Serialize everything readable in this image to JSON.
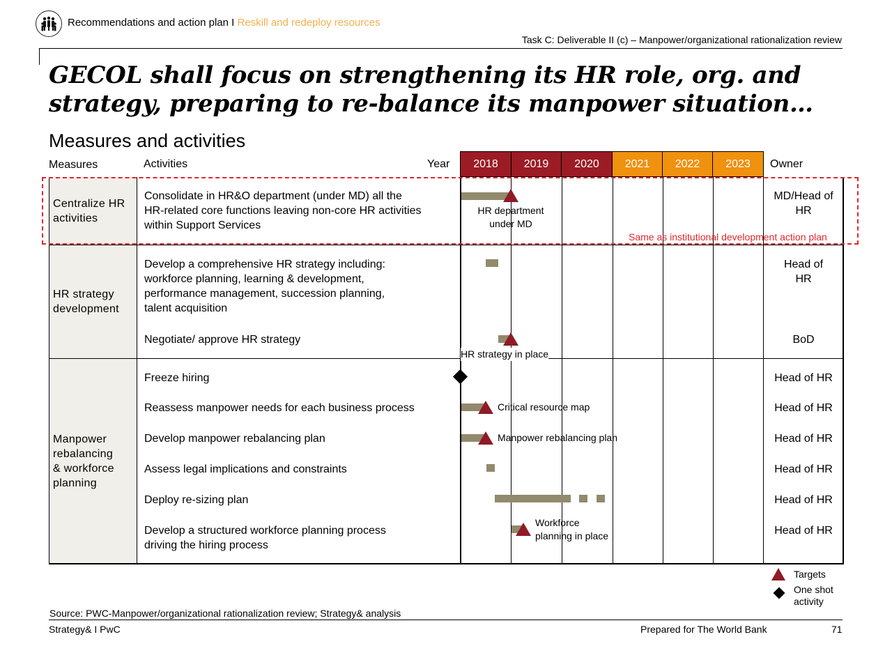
{
  "header": {
    "breadcrumb": "Recommendations and action plan I",
    "breadcrumb_accent": "Reskill and redeploy resources",
    "task": "Task C: Deliverable II (c) – Manpower/organizational rationalization review"
  },
  "title": "GECOL shall focus on strengthening its HR role, org. and strategy, preparing to re-balance its manpower situation…",
  "subtitle": "Measures and activities",
  "table": {
    "col_measures": "Measures",
    "col_activities": "Activities",
    "col_year": "Year",
    "col_owner": "Owner",
    "years": [
      "2018",
      "2019",
      "2020",
      "2021",
      "2022",
      "2023"
    ],
    "year_colors": [
      "#9b1c25",
      "#9b1c25",
      "#9b1c25",
      "#f0910f",
      "#f0910f",
      "#f0910f"
    ],
    "measures": [
      "Centralize HR\nactivities",
      "HR strategy\ndevelopment",
      "Manpower\nrebalancing\n& workforce\nplanning"
    ],
    "activities": [
      "Consolidate in HR&O department (under MD) all the\nHR-related core functions leaving non-core HR activities\nwithin Support Services",
      "Develop a comprehensive HR strategy including:\nworkforce planning, learning & development,\nperformance management, succession planning,\ntalent acquisition",
      "Negotiate/ approve HR strategy",
      "Freeze hiring",
      "Reassess manpower needs for each business process",
      "Develop manpower rebalancing plan",
      "Assess legal implications and constraints",
      "Deploy re-sizing plan",
      "Develop a structured workforce planning process\ndriving the hiring process"
    ],
    "owners": [
      "MD/Head of\nHR",
      "Head of\nHR",
      "BoD",
      "Head of HR",
      "Head of HR",
      "Head of HR",
      "Head of HR",
      "Head of HR",
      "Head of HR"
    ],
    "milestones": [
      "HR department\nunder MD",
      "HR strategy in place",
      "Critical resource map",
      "Manpower rebalancing plan",
      "Workforce\nplanning in place"
    ],
    "note": "Same as institutional development action plan"
  },
  "legend": {
    "targets": "Targets",
    "one_shot": "One shot\nactivity"
  },
  "colors": {
    "target": "#8e1b26",
    "bar": "#918a6c",
    "dashed_box": "#e0262d",
    "accent": "#f4b04e"
  },
  "source": "Source: PWC-Manpower/organizational rationalization review; Strategy& analysis",
  "footer": {
    "left": "Strategy& I PwC",
    "center": "Prepared for The World Bank",
    "page": "71"
  }
}
